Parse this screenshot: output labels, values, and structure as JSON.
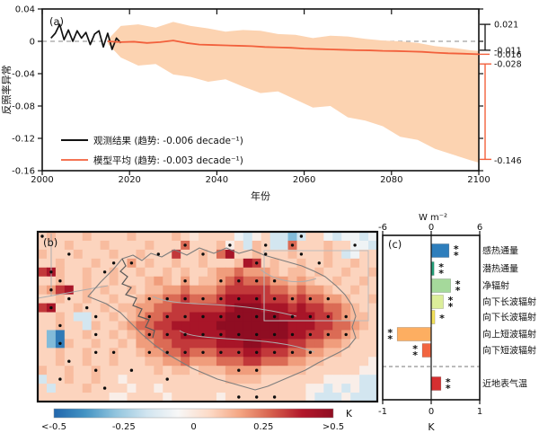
{
  "figure_title": "",
  "chart_data": [
    {
      "id": "a",
      "type": "line",
      "panel_label": "(a)",
      "xlabel": "年份",
      "ylabel": "反照率异常",
      "xlim": [
        2000,
        2100
      ],
      "ylim": [
        -0.16,
        0.04
      ],
      "xticks": [
        "2000",
        "2020",
        "2040",
        "2060",
        "2080",
        "2100"
      ],
      "xtick_values": [
        2000,
        2020,
        2040,
        2060,
        2080,
        2100
      ],
      "yticks": [
        "0.04",
        "0",
        "-0.04",
        "-0.08",
        "-0.12",
        "-0.16"
      ],
      "ytick_values": [
        0.04,
        0,
        -0.04,
        -0.08,
        -0.12,
        -0.16
      ],
      "zero_line": 0,
      "colors": {
        "observed": "#111111",
        "model": "#f2603c",
        "band": "#fcd3b1",
        "dash": "#a0a0a0"
      },
      "series": [
        {
          "name": "观测结果 (趋势: -0.006 decade⁻¹)",
          "color": "#111111",
          "x": [
            2002,
            2003,
            2004,
            2005,
            2006,
            2007,
            2008,
            2009,
            2010,
            2011,
            2012,
            2013,
            2014,
            2015,
            2016,
            2017,
            2018
          ],
          "y": [
            0.004,
            0.01,
            0.021,
            0.002,
            0.014,
            0.0,
            0.013,
            0.004,
            0.011,
            -0.004,
            0.009,
            0.013,
            -0.007,
            0.01,
            -0.01,
            0.004,
            -0.002
          ]
        },
        {
          "name": "模型平均 (趋势: -0.003 decade⁻¹)",
          "color": "#f2603c",
          "x": [
            2015,
            2018,
            2021,
            2024,
            2027,
            2030,
            2033,
            2036,
            2039,
            2042,
            2045,
            2048,
            2051,
            2054,
            2057,
            2060,
            2063,
            2066,
            2069,
            2072,
            2075,
            2078,
            2081,
            2084,
            2087,
            2090,
            2093,
            2096,
            2100
          ],
          "y": [
            0.0,
            -0.001,
            -0.0005,
            -0.002,
            -0.001,
            0.001,
            -0.002,
            -0.004,
            -0.0045,
            -0.005,
            -0.0055,
            -0.006,
            -0.007,
            -0.0075,
            -0.008,
            -0.009,
            -0.0095,
            -0.01,
            -0.0105,
            -0.011,
            -0.0112,
            -0.0118,
            -0.012,
            -0.0125,
            -0.013,
            -0.014,
            -0.0148,
            -0.0152,
            -0.016
          ]
        }
      ],
      "band": {
        "color": "#fcd3b1",
        "x": [
          2015,
          2018,
          2022,
          2026,
          2030,
          2034,
          2038,
          2042,
          2046,
          2050,
          2054,
          2058,
          2062,
          2066,
          2070,
          2074,
          2078,
          2082,
          2086,
          2090,
          2094,
          2098,
          2100
        ],
        "upper": [
          0.002,
          0.019,
          0.021,
          0.017,
          0.024,
          0.019,
          0.016,
          0.012,
          0.014,
          0.013,
          0.009,
          0.008,
          0.004,
          0.007,
          0.006,
          0.003,
          0.001,
          0.0,
          -0.002,
          -0.006,
          -0.008,
          -0.011,
          -0.012
        ],
        "lower": [
          -0.003,
          -0.02,
          -0.03,
          -0.028,
          -0.041,
          -0.044,
          -0.05,
          -0.047,
          -0.056,
          -0.064,
          -0.062,
          -0.072,
          -0.082,
          -0.08,
          -0.094,
          -0.098,
          -0.105,
          -0.118,
          -0.122,
          -0.133,
          -0.14,
          -0.147,
          -0.15
        ]
      },
      "right_annotations": {
        "black_range": {
          "values": [
            0.021,
            -0.011
          ],
          "labels": [
            "0.021",
            "-0.011"
          ],
          "color": "#111111"
        },
        "orange_line_end": {
          "value": -0.016,
          "label": "-0.016",
          "color": "#f2603c"
        },
        "orange_range": {
          "values": [
            -0.028,
            -0.146
          ],
          "labels": [
            "-0.028",
            "-0.146"
          ],
          "color": "#f2603c"
        }
      }
    },
    {
      "id": "b",
      "type": "heatmap",
      "panel_label": "(b)",
      "unit": "K",
      "colorbar": {
        "ticks": [
          "<-0.5",
          "-0.25",
          "0",
          "0.25",
          ">0.5"
        ],
        "values": [
          -0.5,
          -0.25,
          0,
          0.25,
          0.5
        ],
        "unit": "K",
        "stops": [
          "#2166ac",
          "#4393c3",
          "#92c5de",
          "#d1e5f0",
          "#f7f7f7",
          "#fddbc7",
          "#f4a582",
          "#d6604d",
          "#b2182b",
          "#8f0d22"
        ]
      },
      "value_key": {
        "B": -0.45,
        "b": -0.3,
        "c": -0.16,
        "d": -0.08,
        "w": -0.02,
        "0": 0.02,
        "1": 0.07,
        "2": 0.12,
        "3": 0.18,
        "4": 0.26,
        "5": 0.34,
        "6": 0.42,
        "7": 0.5
      },
      "grid": [
        "12111211112111121011 11dcw1ccbc11dcddcd",
        "11121112111121114111 2w1c21cc4111211ddc",
        "21112111211211151121 46112111211121cd11",
        "11211121113121121121 112651211211211211",
        "56211211211211212112 334333212212112112",
        "11211211211123213122 345444332321121121",
        "23561212112122334333 455555443433211211",
        "11211211211233445444 566665554544332112",
        "56112112122334455555 567776665655443211",
        "1121cc11212344555666 677777766665543221",
        "11211c21123445566666 777777776665544321",
        "1bB11211212344556666 677777776655443211",
        "1bB21121121334455555 666776665544332111",
        "11211211211233445444 555665554433221111",
        "11211211211122334333 44455444332211111w",
        "21121121111112122122 2333322222111111ww",
        "c11211211w1111111111 122221111111wwwwcc",
        "1c11121111w11w111111 1111111111wwcwcwcc",
        "11111111ww1111w11111 w111111111wcccwccc"
      ],
      "dot_rule": {
        "min_value": 0.18
      },
      "extra_dots": [
        [
          0,
          0
        ],
        [
          2,
          3
        ],
        [
          2,
          13
        ],
        [
          1,
          25
        ],
        [
          0,
          29
        ],
        [
          2,
          25
        ],
        [
          3,
          8
        ],
        [
          4,
          1
        ],
        [
          4,
          7
        ],
        [
          5,
          2
        ],
        [
          6,
          1
        ],
        [
          7,
          3
        ],
        [
          8,
          1
        ],
        [
          8,
          5
        ],
        [
          9,
          6
        ],
        [
          10,
          2
        ],
        [
          11,
          6
        ],
        [
          12,
          2
        ],
        [
          13,
          6
        ],
        [
          13,
          8
        ],
        [
          14,
          3
        ],
        [
          15,
          6
        ],
        [
          16,
          2
        ],
        [
          17,
          7
        ],
        [
          15,
          10
        ],
        [
          16,
          14
        ],
        [
          18,
          22
        ],
        [
          18,
          24
        ],
        [
          18,
          26
        ],
        [
          1,
          21
        ],
        [
          2,
          29
        ],
        [
          1,
          35
        ],
        [
          3,
          31
        ],
        [
          2,
          18
        ]
      ]
    },
    {
      "id": "c",
      "type": "bar",
      "panel_label": "(c)",
      "axis_top": {
        "label": "W m⁻²",
        "ticks": [
          "-6",
          "0",
          "6"
        ],
        "tick_values": [
          -6,
          0,
          6
        ],
        "lim": [
          -6,
          6
        ]
      },
      "axis_bottom": {
        "label": "K",
        "ticks": [
          "-1",
          "0",
          "1"
        ],
        "tick_values": [
          -1,
          0,
          1
        ],
        "lim": [
          -1,
          1
        ]
      },
      "rows": [
        {
          "label": "感热通量",
          "value": 2.2,
          "unit": "W",
          "color": "#2e7ebc",
          "sig": "**"
        },
        {
          "label": "潜热通量",
          "value": 0.35,
          "unit": "W",
          "color": "#27a47e",
          "sig": "**"
        },
        {
          "label": "净辐射",
          "value": 2.4,
          "unit": "W",
          "color": "#a5d99b",
          "sig": "**"
        },
        {
          "label": "向下长波辐射",
          "value": 1.5,
          "unit": "W",
          "color": "#dcee9a",
          "sig": "**"
        },
        {
          "label": "向下长波辐射",
          "value": 0.45,
          "unit": "W",
          "color": "#f3e15b",
          "sig": "*"
        },
        {
          "label": "向上短波辐射",
          "value": -4.2,
          "unit": "W",
          "color": "#fdae61",
          "sig": "**"
        },
        {
          "label": "向下短波辐射",
          "value": -1.1,
          "unit": "W",
          "color": "#f2643f",
          "sig": "**"
        },
        {
          "label": "近地表气温",
          "value": 0.2,
          "unit": "K",
          "color": "#d62f30",
          "sig": "**",
          "separated": true
        }
      ]
    }
  ]
}
